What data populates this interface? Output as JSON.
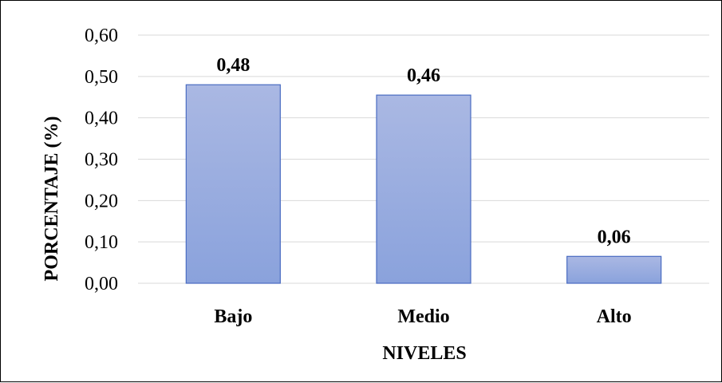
{
  "chart_data": {
    "type": "bar",
    "categories": [
      "Bajo",
      "Medio",
      "Alto"
    ],
    "values": [
      0.48,
      0.455,
      0.065
    ],
    "data_labels": [
      "0,48",
      "0,46",
      "0,06"
    ],
    "title": "",
    "xlabel": "NIVELES",
    "ylabel": "PORCENTAJE (%)",
    "ylim": [
      0,
      0.6
    ],
    "yticks": [
      0,
      0.1,
      0.2,
      0.3,
      0.4,
      0.5,
      0.6
    ],
    "ytick_labels": [
      "0,00",
      "0,10",
      "0,20",
      "0,30",
      "0,40",
      "0,50",
      "0,60"
    ],
    "grid": true,
    "legend": "none",
    "colors": {
      "bar_fill_top": "#aab8e3",
      "bar_fill_bottom": "#8aa2dc",
      "bar_stroke": "#4a6cc2",
      "grid": "#d9d9d9"
    }
  }
}
